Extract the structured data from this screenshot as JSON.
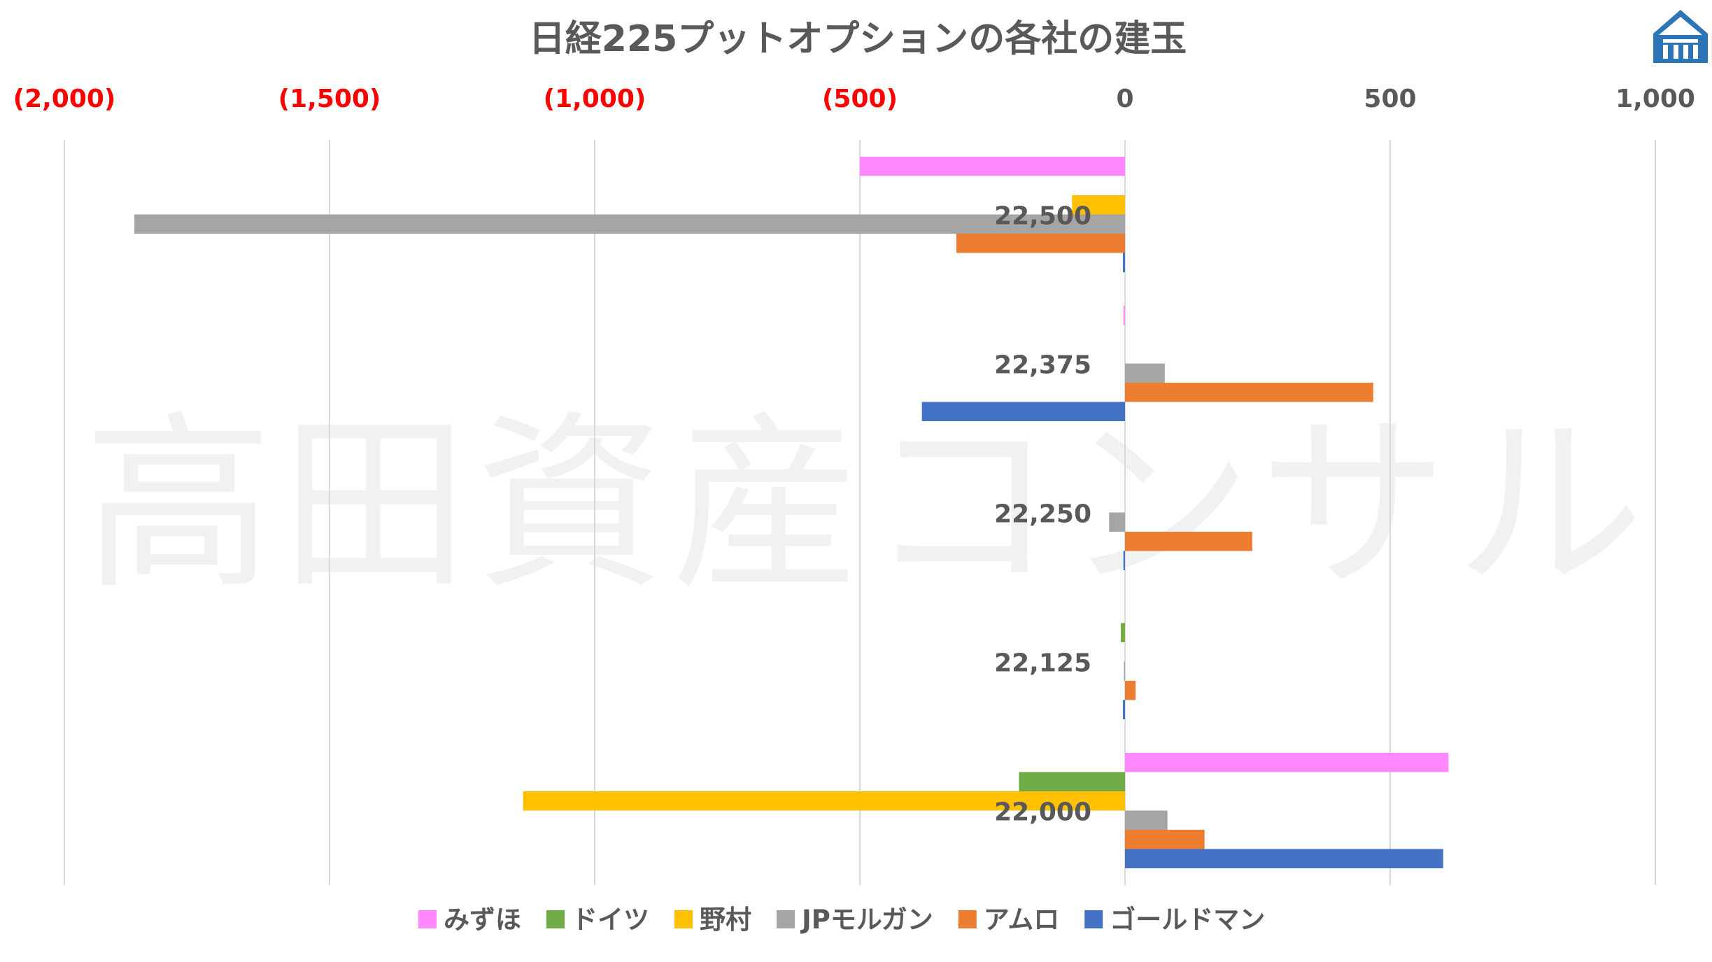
{
  "watermark": "高田資産コンサル",
  "logo": {
    "name": "building-logo-icon",
    "color": "#2E75B6"
  },
  "colors": {
    "negative_tick": "#FF0000",
    "positive_tick": "#595959",
    "grid": "#D9D9D9"
  },
  "chart_data": {
    "type": "bar",
    "orientation": "horizontal",
    "title": "日経225プットオプションの各社の建玉",
    "xlim": [
      -2000,
      1000
    ],
    "x_ticks": [
      {
        "value": -2000,
        "label": "(2,000)"
      },
      {
        "value": -1500,
        "label": "(1,500)"
      },
      {
        "value": -1000,
        "label": "(1,000)"
      },
      {
        "value": -500,
        "label": "(500)"
      },
      {
        "value": 0,
        "label": "0"
      },
      {
        "value": 500,
        "label": "500"
      },
      {
        "value": 1000,
        "label": "1,000"
      }
    ],
    "x_axis_position": "top",
    "grid": true,
    "legend_position": "bottom",
    "categories": [
      "22,500",
      "22,375",
      "22,250",
      "22,125",
      "22,000"
    ],
    "series": [
      {
        "name": "みずほ",
        "color": "#FF88FF",
        "values": [
          -500,
          -3,
          0,
          0,
          610
        ]
      },
      {
        "name": "ドイツ",
        "color": "#70AD47",
        "values": [
          0,
          0,
          0,
          -8,
          -200
        ]
      },
      {
        "name": "野村",
        "color": "#FFC000",
        "values": [
          -100,
          0,
          0,
          0,
          -1135
        ]
      },
      {
        "name": "JPモルガン",
        "color": "#A5A5A5",
        "values": [
          -1868,
          75,
          -30,
          -2,
          80
        ]
      },
      {
        "name": "アムロ",
        "color": "#ED7D31",
        "values": [
          -318,
          468,
          240,
          20,
          150
        ]
      },
      {
        "name": "ゴールドマン",
        "color": "#4472C4",
        "values": [
          -4,
          -383,
          -3,
          -4,
          600
        ]
      }
    ]
  }
}
